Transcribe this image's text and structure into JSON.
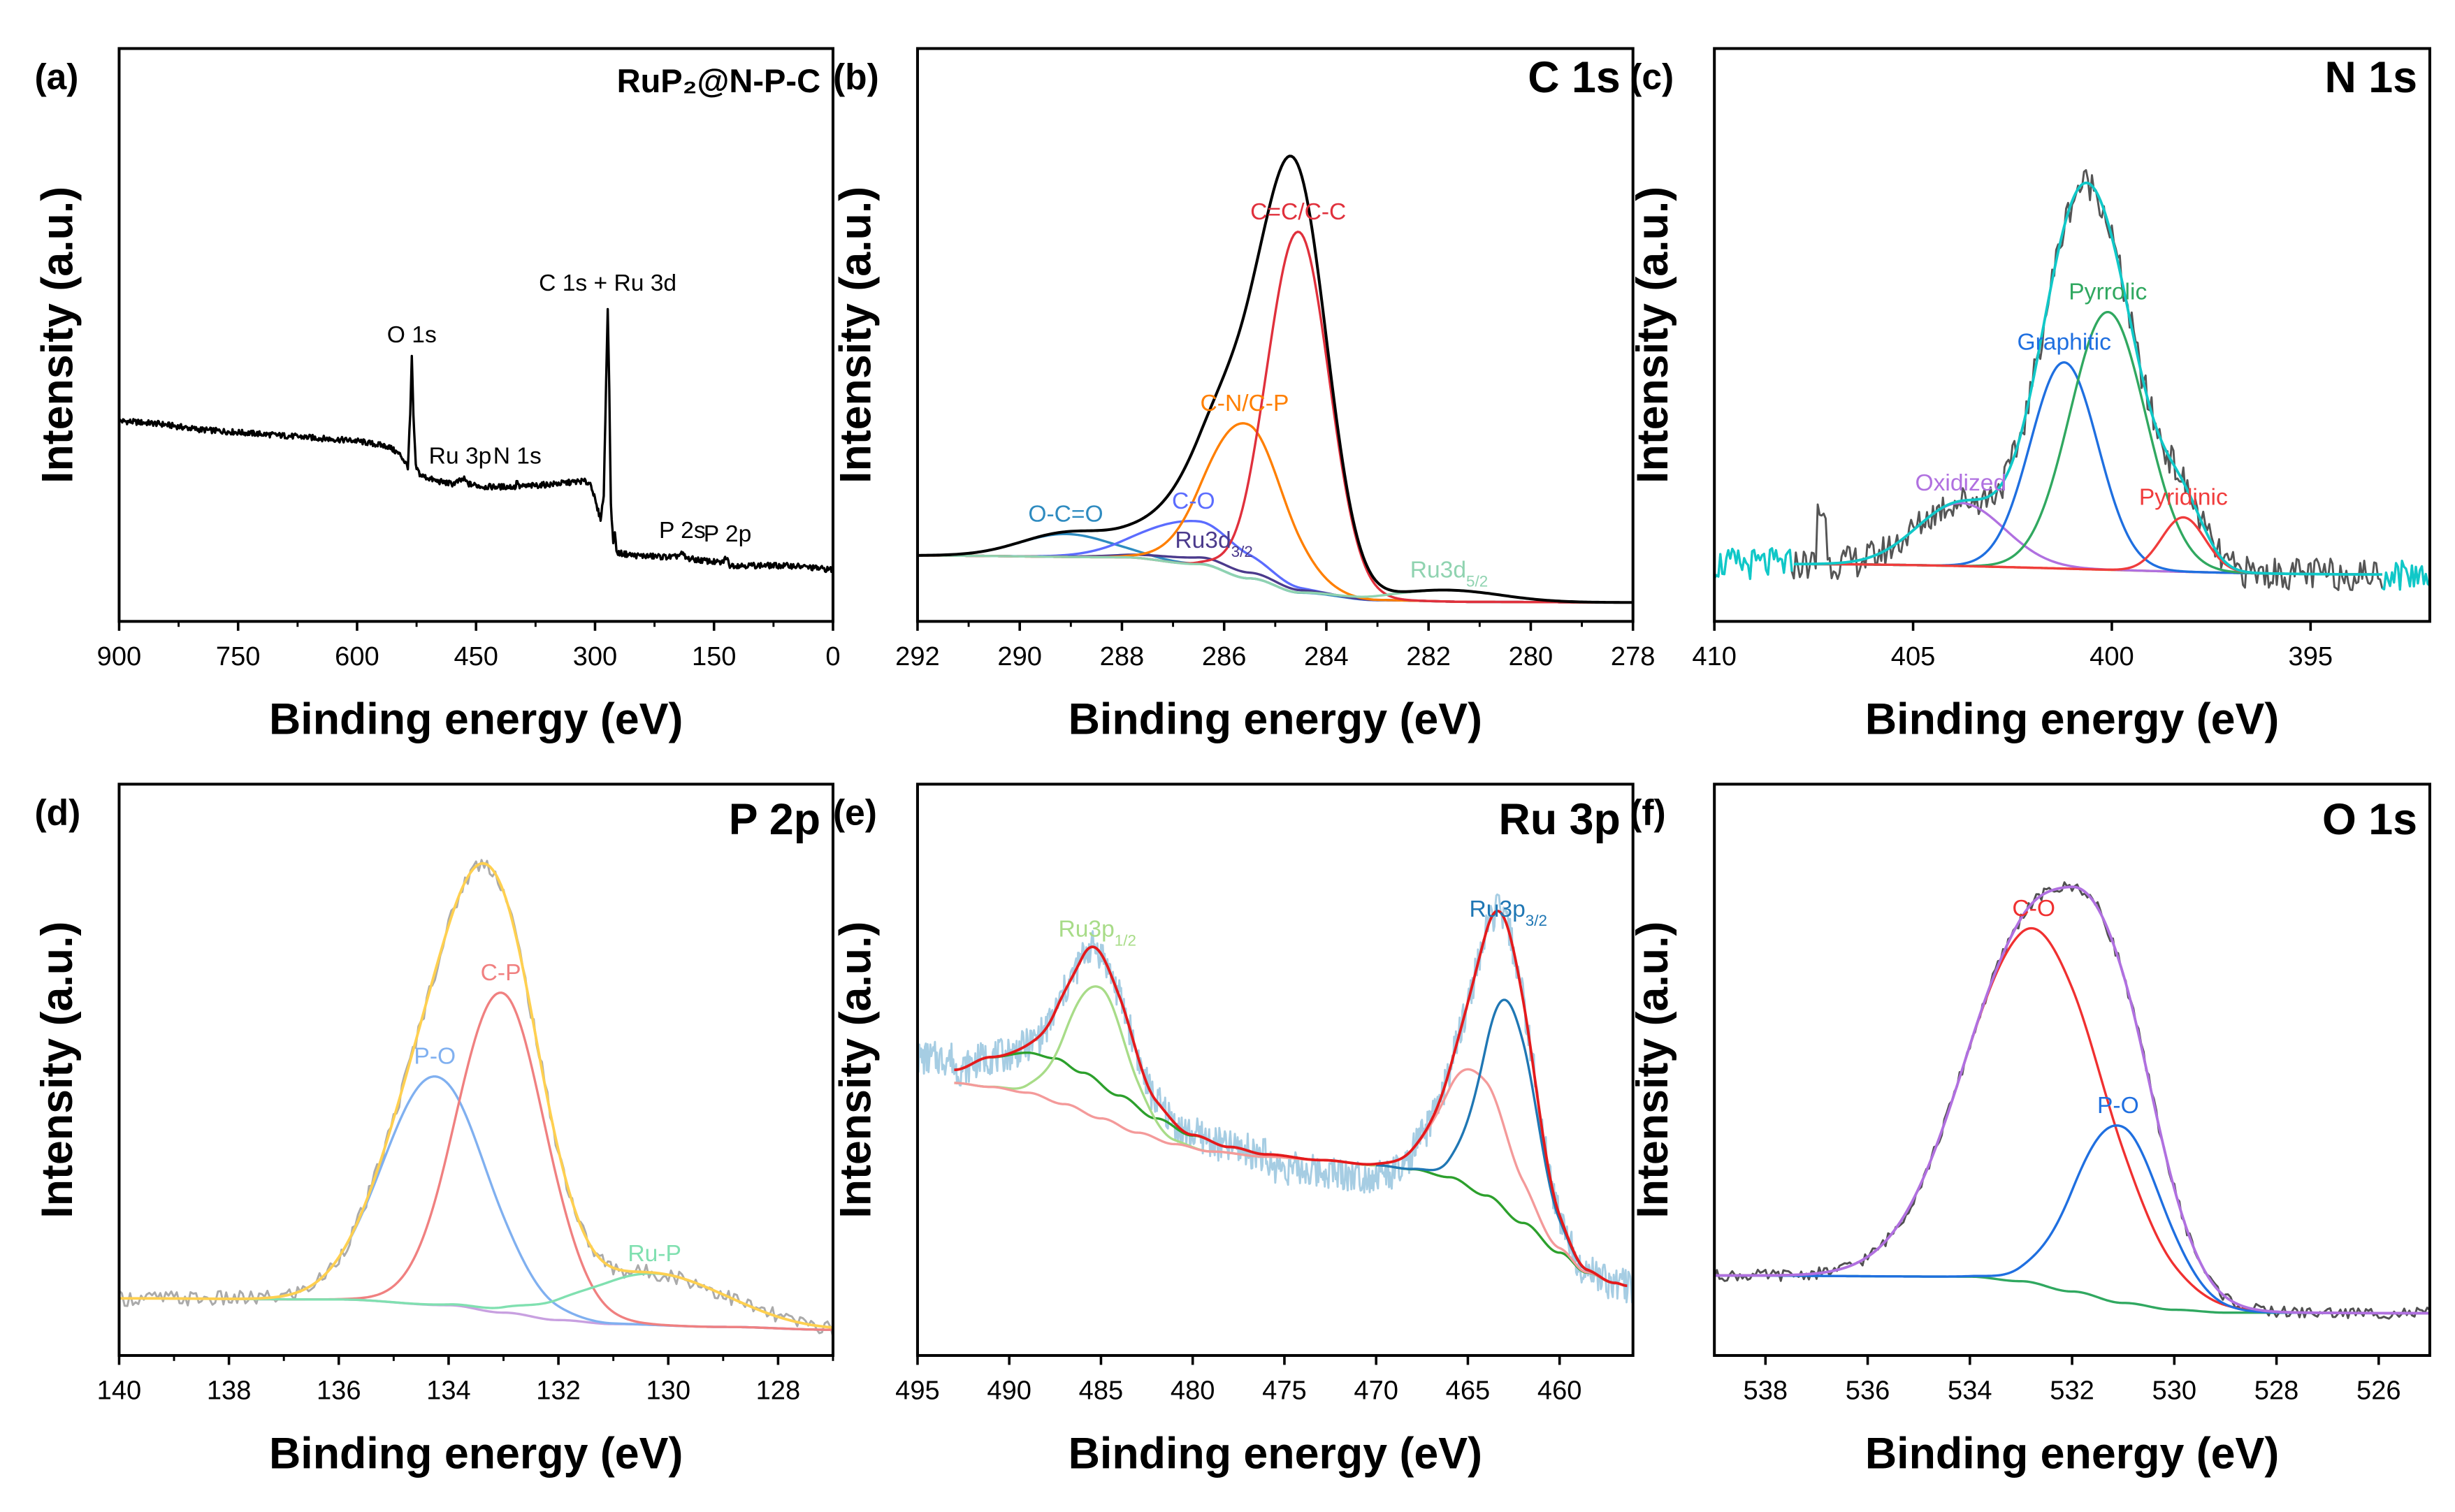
{
  "chart_data": [
    {
      "panel": "(a)",
      "type": "line",
      "title": "RuP₂@N-P-C",
      "xlabel": "Binding energy (eV)",
      "ylabel": "Intensity (a.u.)",
      "xlim": [
        900,
        0
      ],
      "ylim": [
        0,
        1
      ],
      "x_reversed": true,
      "grid": false,
      "xticks": [
        900,
        750,
        600,
        450,
        300,
        150,
        0
      ],
      "minor_step": 75,
      "survey": {
        "color": "#000000",
        "points": [
          [
            900,
            0.35
          ],
          [
            850,
            0.345
          ],
          [
            800,
            0.335
          ],
          [
            750,
            0.33
          ],
          [
            700,
            0.325
          ],
          [
            650,
            0.32
          ],
          [
            600,
            0.315
          ],
          [
            560,
            0.305
          ],
          [
            545,
            0.29
          ],
          [
            536,
            0.27
          ],
          [
            533,
            0.36
          ],
          [
            531,
            0.46
          ],
          [
            529,
            0.36
          ],
          [
            526,
            0.27
          ],
          [
            520,
            0.255
          ],
          [
            500,
            0.245
          ],
          [
            480,
            0.24
          ],
          [
            465,
            0.248
          ],
          [
            460,
            0.24
          ],
          [
            440,
            0.235
          ],
          [
            400,
            0.235
          ],
          [
            398,
            0.248
          ],
          [
            396,
            0.235
          ],
          [
            350,
            0.24
          ],
          [
            315,
            0.245
          ],
          [
            305,
            0.24
          ],
          [
            298,
            0.2
          ],
          [
            293,
            0.18
          ],
          [
            289,
            0.22
          ],
          [
            286,
            0.42
          ],
          [
            284,
            0.55
          ],
          [
            282,
            0.4
          ],
          [
            280,
            0.2
          ],
          [
            277,
            0.14
          ],
          [
            275,
            0.16
          ],
          [
            273,
            0.12
          ],
          [
            250,
            0.115
          ],
          [
            200,
            0.112
          ],
          [
            190,
            0.118
          ],
          [
            185,
            0.11
          ],
          [
            140,
            0.102
          ],
          [
            135,
            0.112
          ],
          [
            130,
            0.098
          ],
          [
            50,
            0.097
          ],
          [
            0,
            0.09
          ]
        ]
      },
      "annotations": [
        {
          "text": "O 1s",
          "x": 531
        },
        {
          "text": "Ru 3p",
          "x": 470
        },
        {
          "text": "N 1s",
          "x": 398
        },
        {
          "text": "C 1s + Ru 3d",
          "x": 284
        },
        {
          "text": "P 2s",
          "x": 190
        },
        {
          "text": "P 2p",
          "x": 133
        }
      ]
    },
    {
      "panel": "(b)",
      "type": "line",
      "title": "C 1s",
      "xlabel": "Binding energy (eV)",
      "ylabel": "Intensity (a.u.)",
      "xlim": [
        292,
        278
      ],
      "ylim": [
        0,
        1
      ],
      "x_reversed": true,
      "grid": false,
      "xticks": [
        292,
        290,
        288,
        286,
        284,
        282,
        280,
        278
      ],
      "minor_step": 1,
      "fit_range": [
        292,
        278
      ],
      "backgrounds": [
        {
          "id": "bg",
          "color": "#4b3a8c",
          "show": false,
          "points": [
            [
              292,
              0.115
            ],
            [
              288,
              0.112
            ],
            [
              286.5,
              0.1
            ],
            [
              285.5,
              0.075
            ],
            [
              284.5,
              0.05
            ],
            [
              283,
              0.037
            ],
            [
              281,
              0.034
            ],
            [
              278,
              0.033
            ]
          ]
        }
      ],
      "components": [
        {
          "name": "O-C=O",
          "center": 289.1,
          "height": 0.04,
          "sigma": 0.9,
          "color": "#2e8bc0",
          "base": "bg"
        },
        {
          "name": "C-O",
          "center": 286.6,
          "height": 0.075,
          "sigma": 1.0,
          "color": "#5b6cff",
          "base": "bg"
        },
        {
          "name": "Ru3d",
          "sub": "3/2",
          "center": 286.2,
          "height": 0.012,
          "sigma": 1.2,
          "color": "#4b3a8c",
          "base": "bg"
        },
        {
          "name": "C-N/C-P",
          "center": 285.6,
          "height": 0.27,
          "sigma": 0.75,
          "color": "#ff7f00",
          "base": "bg"
        },
        {
          "name": "C=C/C-C",
          "center": 284.55,
          "height": 0.63,
          "sigma": 0.6,
          "color": "#e0303c",
          "base": "bg"
        },
        {
          "name": "Ru3d",
          "sub": "5/2",
          "center": 281.6,
          "height": 0.02,
          "sigma": 1.0,
          "color": "#8fd3b0",
          "base": "bg"
        }
      ],
      "envelope": {
        "color": "#000000",
        "base": "bg"
      }
    },
    {
      "panel": "(c)",
      "type": "line",
      "title": "N 1s",
      "xlabel": "Binding energy (eV)",
      "ylabel": "Intensity (a.u.)",
      "xlim": [
        410,
        392
      ],
      "ylim": [
        0,
        1
      ],
      "x_reversed": true,
      "grid": false,
      "xticks": [
        410,
        405,
        400,
        395
      ],
      "minor_step": 0,
      "fit_range": [
        408,
        393.2
      ],
      "raw": {
        "color": "#555555"
      },
      "backgrounds": [
        {
          "id": "bg",
          "color": "#d4a017",
          "show": true,
          "points": [
            [
              408,
              0.1
            ],
            [
              393.2,
              0.082
            ]
          ]
        }
      ],
      "components": [
        {
          "name": "Oxidized",
          "center": 403.8,
          "height": 0.11,
          "sigma": 1.1,
          "color": "#b070e0",
          "base": "bg"
        },
        {
          "name": "Graphitic",
          "center": 401.2,
          "height": 0.36,
          "sigma": 0.85,
          "color": "#1f6fe0",
          "base": "bg"
        },
        {
          "name": "Pyrrolic",
          "center": 400.1,
          "height": 0.45,
          "sigma": 0.95,
          "color": "#30a860",
          "base": "bg"
        },
        {
          "name": "Pyridinic",
          "center": 398.2,
          "height": 0.095,
          "sigma": 0.55,
          "color": "#f03c3c",
          "base": "bg"
        }
      ],
      "envelope": {
        "color": "#10c8c8",
        "base": "bg"
      }
    },
    {
      "panel": "(d)",
      "type": "line",
      "title": "P 2p",
      "xlabel": "Binding energy (eV)",
      "ylabel": "Intensity (a.u.)",
      "xlim": [
        140,
        127
      ],
      "ylim": [
        0,
        1
      ],
      "x_reversed": true,
      "grid": false,
      "xticks": [
        140,
        138,
        136,
        134,
        132,
        130,
        128
      ],
      "minor_step": 1,
      "fit_range": [
        140,
        127
      ],
      "raw": {
        "color": "#aaaaaa"
      },
      "backgrounds": [
        {
          "id": "bg",
          "color": "#c8a0e0",
          "show": true,
          "points": [
            [
              140,
              0.1
            ],
            [
              136,
              0.098
            ],
            [
              134,
              0.088
            ],
            [
              133,
              0.075
            ],
            [
              132,
              0.062
            ],
            [
              131,
              0.055
            ],
            [
              129,
              0.05
            ],
            [
              127,
              0.045
            ]
          ]
        }
      ],
      "components": [
        {
          "name": "P-O",
          "center": 134.25,
          "height": 0.4,
          "sigma": 0.95,
          "color": "#80b0f0",
          "base": "bg"
        },
        {
          "name": "C-P",
          "center": 133.05,
          "height": 0.56,
          "sigma": 0.8,
          "color": "#f08080",
          "base": "bg"
        },
        {
          "name": "Ru-P",
          "center": 130.25,
          "height": 0.09,
          "sigma": 1.3,
          "color": "#80e0b0",
          "base": "bg"
        }
      ],
      "envelope": {
        "color": "#ffd050",
        "base": "bg"
      }
    },
    {
      "panel": "(e)",
      "type": "line",
      "title": "Ru 3p",
      "xlabel": "Binding energy (eV)",
      "ylabel": "Intensity (a.u.)",
      "xlim": [
        495,
        456
      ],
      "ylim": [
        0,
        1
      ],
      "x_reversed": true,
      "grid": false,
      "xticks": [
        495,
        490,
        485,
        480,
        475,
        470,
        465,
        460
      ],
      "minor_step": 0,
      "fit_range": [
        493,
        456.3
      ],
      "raw": {
        "color": "#a6cde3"
      },
      "backgrounds": [
        {
          "id": "bg1",
          "color": "#2ca02c",
          "show": true,
          "points": [
            [
              493,
              0.5
            ],
            [
              491,
              0.522
            ],
            [
              489,
              0.53
            ],
            [
              487.5,
              0.52
            ],
            [
              486,
              0.495
            ],
            [
              484,
              0.455
            ],
            [
              482,
              0.415
            ],
            [
              480,
              0.385
            ],
            [
              478,
              0.365
            ],
            [
              476,
              0.352
            ],
            [
              473,
              0.342
            ],
            [
              470,
              0.333
            ],
            [
              468,
              0.326
            ],
            [
              466,
              0.312
            ],
            [
              464,
              0.28
            ],
            [
              462,
              0.232
            ],
            [
              460,
              0.18
            ],
            [
              458.5,
              0.145
            ],
            [
              457,
              0.127
            ],
            [
              456.3,
              0.122
            ]
          ]
        },
        {
          "id": "bg2",
          "color": "#f49a9a",
          "show": false,
          "points": [
            [
              493,
              0.477
            ],
            [
              491,
              0.47
            ],
            [
              489,
              0.46
            ],
            [
              487,
              0.44
            ],
            [
              485,
              0.415
            ],
            [
              483,
              0.39
            ],
            [
              481,
              0.37
            ],
            [
              479,
              0.357
            ],
            [
              476,
              0.348
            ],
            [
              473,
              0.342
            ],
            [
              470,
              0.333
            ],
            [
              468,
              0.326
            ],
            [
              466,
              0.312
            ],
            [
              464,
              0.28
            ],
            [
              462,
              0.232
            ],
            [
              460,
              0.18
            ],
            [
              458.5,
              0.145
            ],
            [
              457,
              0.127
            ],
            [
              456.3,
              0.122
            ]
          ]
        }
      ],
      "components": [
        {
          "name": "Ru3p",
          "sub": "1/2",
          "center": 485.2,
          "height": 0.23,
          "sigma": 1.6,
          "color": "#a8dc88",
          "base": "bg2",
          "range": [
            493,
            470
          ]
        },
        {
          "name": "",
          "center": 464.6,
          "height": 0.21,
          "sigma": 1.8,
          "color": "#f49a9a",
          "base": "bg2"
        },
        {
          "name": "Ru3p",
          "sub": "3/2",
          "center": 462.8,
          "height": 0.37,
          "sigma": 1.45,
          "color": "#1f77b4",
          "base": "bg1",
          "range": [
            470,
            456.3
          ]
        }
      ],
      "envelope": {
        "color": "#e41a1c",
        "base": "bg1"
      }
    },
    {
      "panel": "(f)",
      "type": "line",
      "title": "O 1s",
      "xlabel": "Binding energy (eV)",
      "ylabel": "Intensity (a.u.)",
      "xlim": [
        539,
        525
      ],
      "ylim": [
        0,
        1
      ],
      "x_reversed": true,
      "grid": false,
      "xticks": [
        538,
        536,
        534,
        532,
        530,
        528,
        526
      ],
      "minor_step": 0,
      "fit_range": [
        539,
        525
      ],
      "raw": {
        "color": "#505050"
      },
      "backgrounds": [
        {
          "id": "bg",
          "color": "#30a860",
          "show": true,
          "points": [
            [
              539,
              0.14
            ],
            [
              534,
              0.138
            ],
            [
              533,
              0.13
            ],
            [
              532,
              0.112
            ],
            [
              531,
              0.092
            ],
            [
              530,
              0.08
            ],
            [
              529,
              0.075
            ],
            [
              525,
              0.074
            ]
          ]
        }
      ],
      "components": [
        {
          "name": "C-O",
          "center": 532.75,
          "height": 0.62,
          "sigma": 1.35,
          "color": "#f03030",
          "base": "bg"
        },
        {
          "name": "P-O",
          "center": 531.1,
          "height": 0.31,
          "sigma": 0.85,
          "color": "#1f6fe0",
          "base": "bg"
        }
      ],
      "envelope": {
        "color": "#b070e0",
        "base": "bg"
      }
    }
  ]
}
